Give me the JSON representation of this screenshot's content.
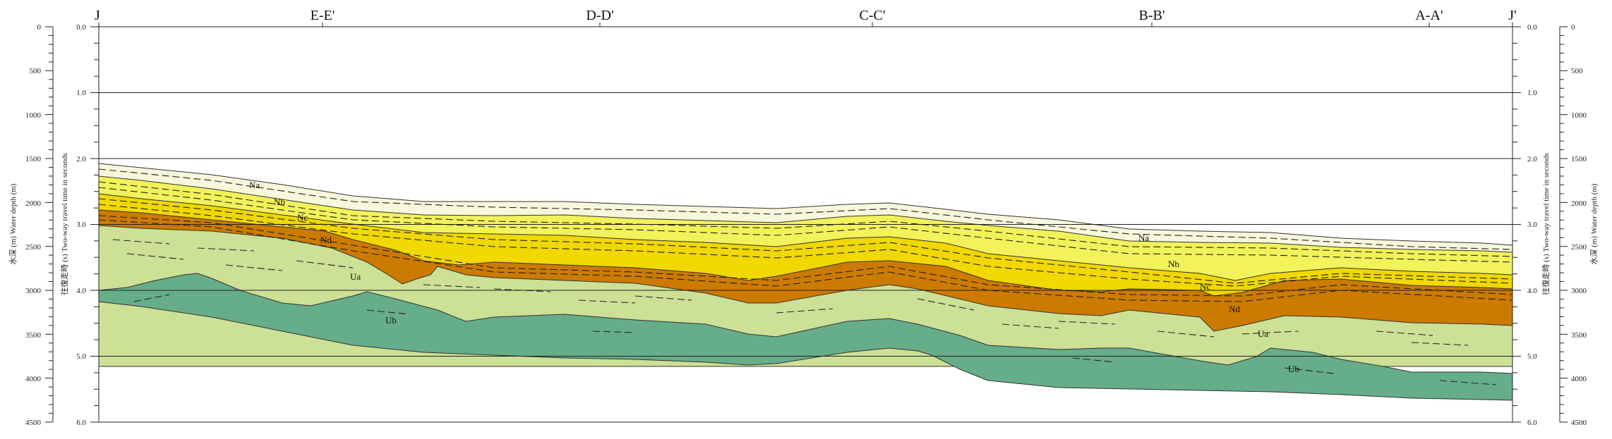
{
  "section_markers": [
    "J",
    "E-E'",
    "D-D'",
    "C-C'",
    "B-B'",
    "A-A'",
    "J'"
  ],
  "depth_ticks": [
    "0",
    "500",
    "1000",
    "1500",
    "2000",
    "2500",
    "3000",
    "3500",
    "4000",
    "4500"
  ],
  "twt_ticks": [
    "0.0",
    "1.0",
    "2.0",
    "3.0",
    "4.0",
    "5.0",
    "6.0"
  ],
  "axis_titles": {
    "depth": "水深 (m)  Water depth (m)",
    "twt": "往復走時 (s)  Two-way travel time in seconds"
  },
  "unit_labels": [
    "Na",
    "Nb",
    "Nc",
    "Nd",
    "Ua",
    "Ub",
    "Na",
    "Nb",
    "Nc",
    "Nd",
    "Ua",
    "Ub"
  ],
  "colors": {
    "Na": "#f7f7dc",
    "Nb": "#f2f25a",
    "Nc": "#f0d800",
    "Nd": "#cc7a00",
    "Ua": "#cce096",
    "Ub": "#66ad8a",
    "line": "#222222"
  }
}
